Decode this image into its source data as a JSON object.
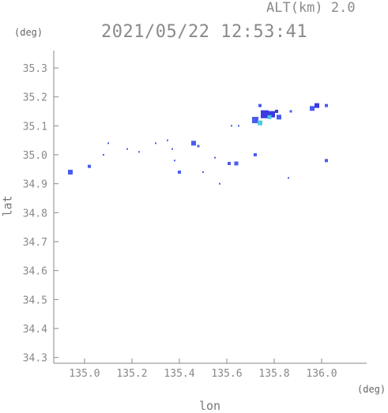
{
  "header": {
    "altitude": "ALT(km) 2.0",
    "timestamp": "2021/05/22 12:53:41"
  },
  "chart_data": {
    "type": "scatter",
    "title": "2021/05/22 12:53:41",
    "xlabel": "lon",
    "ylabel": "lat",
    "xunit": "(deg)",
    "yunit": "(deg)",
    "xlim": [
      134.87,
      136.19
    ],
    "ylim": [
      34.28,
      35.36
    ],
    "xticks": [
      135.0,
      135.2,
      135.4,
      135.6,
      135.8,
      136.0
    ],
    "xtick_labels": [
      "135.0",
      "135.2",
      "135.4",
      "135.6",
      "135.8",
      "136.0"
    ],
    "yticks": [
      34.3,
      34.4,
      34.5,
      34.6,
      34.7,
      34.8,
      34.9,
      35.0,
      35.1,
      35.2,
      35.3
    ],
    "ytick_labels": [
      "34.3",
      "34.4",
      "34.5",
      "34.6",
      "34.7",
      "34.8",
      "34.9",
      "35.0",
      "35.1",
      "35.2",
      "35.3"
    ],
    "grid": false,
    "series": [
      {
        "points": [
          {
            "lon": 134.94,
            "lat": 34.94,
            "size": 3,
            "color": "#4a5cf0"
          },
          {
            "lon": 135.02,
            "lat": 34.96,
            "size": 2,
            "color": "#4a5cf0"
          },
          {
            "lon": 135.1,
            "lat": 35.04,
            "size": 1,
            "color": "#4a5cf0"
          },
          {
            "lon": 135.08,
            "lat": 35.0,
            "size": 1,
            "color": "#4a5cf0"
          },
          {
            "lon": 135.18,
            "lat": 35.02,
            "size": 1,
            "color": "#4a5cf0"
          },
          {
            "lon": 135.23,
            "lat": 35.01,
            "size": 1,
            "color": "#4a5cf0"
          },
          {
            "lon": 135.3,
            "lat": 35.04,
            "size": 1,
            "color": "#4a5cf0"
          },
          {
            "lon": 135.35,
            "lat": 35.05,
            "size": 1,
            "color": "#4a5cf0"
          },
          {
            "lon": 135.37,
            "lat": 35.02,
            "size": 1,
            "color": "#4a5cf0"
          },
          {
            "lon": 135.38,
            "lat": 34.98,
            "size": 1,
            "color": "#4a5cf0"
          },
          {
            "lon": 135.4,
            "lat": 34.94,
            "size": 2,
            "color": "#4a5cf0"
          },
          {
            "lon": 135.46,
            "lat": 35.04,
            "size": 3,
            "color": "#4a5cf0"
          },
          {
            "lon": 135.48,
            "lat": 35.03,
            "size": 1.5,
            "color": "#4a5cf0"
          },
          {
            "lon": 135.5,
            "lat": 34.94,
            "size": 1,
            "color": "#4a5cf0"
          },
          {
            "lon": 135.55,
            "lat": 34.99,
            "size": 1,
            "color": "#4a5cf0"
          },
          {
            "lon": 135.57,
            "lat": 34.9,
            "size": 1,
            "color": "#4a5cf0"
          },
          {
            "lon": 135.61,
            "lat": 34.97,
            "size": 2,
            "color": "#4a5cf0"
          },
          {
            "lon": 135.64,
            "lat": 34.97,
            "size": 2.5,
            "color": "#4a5cf0"
          },
          {
            "lon": 135.62,
            "lat": 35.1,
            "size": 1,
            "color": "#4a5cf0"
          },
          {
            "lon": 135.65,
            "lat": 35.1,
            "size": 1,
            "color": "#4a5cf0"
          },
          {
            "lon": 135.72,
            "lat": 35.0,
            "size": 2,
            "color": "#4a5cf0"
          },
          {
            "lon": 135.86,
            "lat": 34.92,
            "size": 1,
            "color": "#4a5cf0"
          },
          {
            "lon": 135.72,
            "lat": 35.12,
            "size": 4,
            "color": "#4a5cf0"
          },
          {
            "lon": 135.74,
            "lat": 35.11,
            "size": 3,
            "color": "#4cc8e0"
          },
          {
            "lon": 135.76,
            "lat": 35.14,
            "size": 5,
            "color": "#3a3ae0"
          },
          {
            "lon": 135.79,
            "lat": 35.14,
            "size": 4,
            "color": "#3a3ae0"
          },
          {
            "lon": 135.78,
            "lat": 35.13,
            "size": 2.5,
            "color": "#4cc8e0"
          },
          {
            "lon": 135.82,
            "lat": 35.13,
            "size": 3,
            "color": "#4a5cf0"
          },
          {
            "lon": 135.81,
            "lat": 35.15,
            "size": 2,
            "color": "#3a3ae0"
          },
          {
            "lon": 135.74,
            "lat": 35.17,
            "size": 2,
            "color": "#4a5cf0"
          },
          {
            "lon": 135.87,
            "lat": 35.15,
            "size": 1.5,
            "color": "#4a5cf0"
          },
          {
            "lon": 135.96,
            "lat": 35.16,
            "size": 3,
            "color": "#4a5cf0"
          },
          {
            "lon": 135.98,
            "lat": 35.17,
            "size": 3,
            "color": "#3a3ae0"
          },
          {
            "lon": 136.02,
            "lat": 35.17,
            "size": 2,
            "color": "#4a5cf0"
          },
          {
            "lon": 136.02,
            "lat": 34.98,
            "size": 2,
            "color": "#4a5cf0"
          }
        ]
      }
    ]
  }
}
